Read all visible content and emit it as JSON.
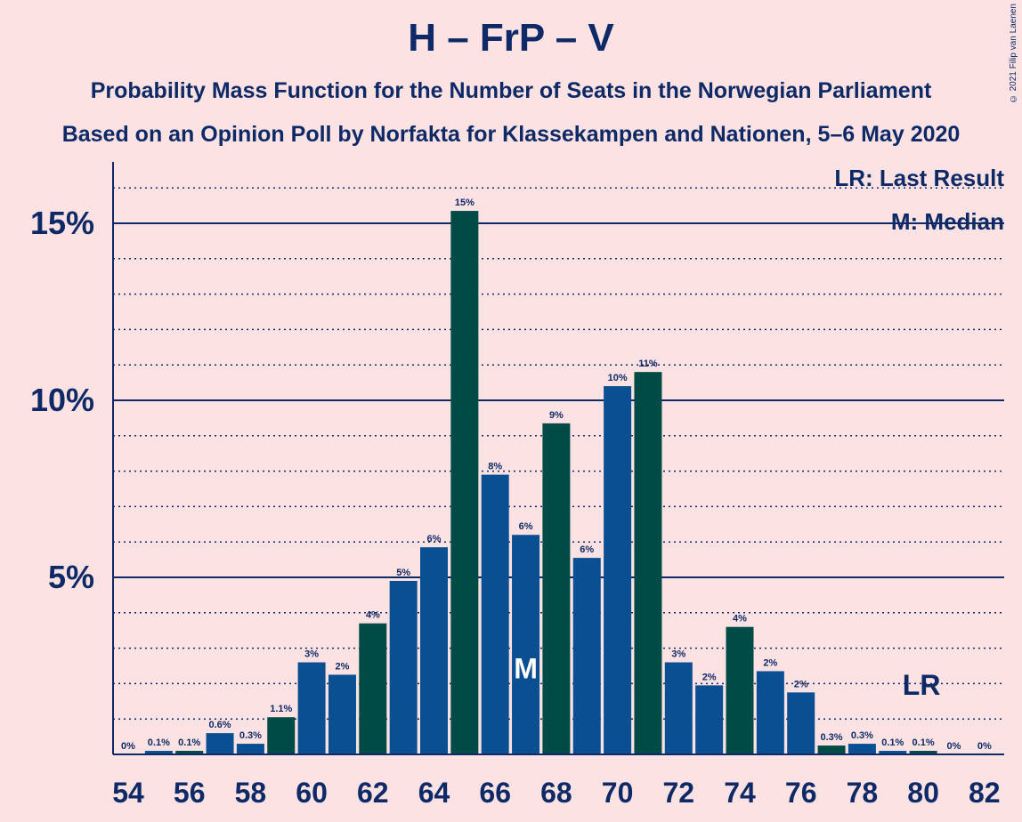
{
  "title": "H – FrP – V",
  "subtitle_1": "Probability Mass Function for the Number of Seats in the Norwegian Parliament",
  "subtitle_2": "Based on an Opinion Poll by Norfakta for Klassekampen and Nationen, 5–6 May 2020",
  "copyright": "© 2021 Filip van Laenen",
  "legend": {
    "last_result": "LR: Last Result",
    "median": "M: Median"
  },
  "colors": {
    "background": "#fde2e4",
    "text": "#0d2a66",
    "blue": "#0a4f91",
    "green": "#004b45"
  },
  "chart_data": {
    "type": "bar",
    "x_tick_labels": [
      "54",
      "56",
      "58",
      "60",
      "62",
      "64",
      "66",
      "68",
      "70",
      "72",
      "74",
      "76",
      "78",
      "80",
      "82"
    ],
    "y_tick_labels": [
      "5%",
      "10%",
      "15%"
    ],
    "ylim": [
      0,
      16.7
    ],
    "series": [
      {
        "x": [
          54,
          55,
          56,
          57,
          58,
          59,
          60,
          61,
          62,
          63,
          64,
          65,
          66,
          67,
          68,
          69,
          70,
          71,
          72,
          73,
          74,
          75,
          76,
          77,
          78,
          79,
          80,
          81,
          82
        ],
        "values": [
          0,
          0.1,
          0.1,
          0.6,
          0.3,
          1.05,
          2.6,
          2.25,
          3.7,
          4.9,
          5.85,
          15.35,
          7.9,
          6.2,
          9.35,
          5.55,
          10.4,
          10.8,
          2.6,
          1.95,
          3.6,
          2.35,
          1.75,
          0.25,
          0.3,
          0.1,
          0.1,
          0,
          0
        ],
        "labels": [
          "0%",
          "0.1%",
          "0.1%",
          "0.6%",
          "0.3%",
          "1.1%",
          "3%",
          "2%",
          "4%",
          "5%",
          "6%",
          "15%",
          "8%",
          "6%",
          "9%",
          "6%",
          "10%",
          "11%",
          "3%",
          "2%",
          "4%",
          "2%",
          "2%",
          "0.3%",
          "0.3%",
          "0.1%",
          "0.1%",
          "0%",
          "0%"
        ],
        "colors": [
          "blue",
          "blue",
          "green",
          "blue",
          "blue",
          "green",
          "blue",
          "blue",
          "green",
          "blue",
          "blue",
          "green",
          "blue",
          "blue",
          "green",
          "blue",
          "blue",
          "green",
          "blue",
          "blue",
          "green",
          "blue",
          "blue",
          "green",
          "blue",
          "blue",
          "green",
          "blue",
          "blue"
        ]
      }
    ],
    "median": {
      "x": 67,
      "label": "M"
    },
    "last_result": {
      "x": 80,
      "label": "LR"
    }
  }
}
